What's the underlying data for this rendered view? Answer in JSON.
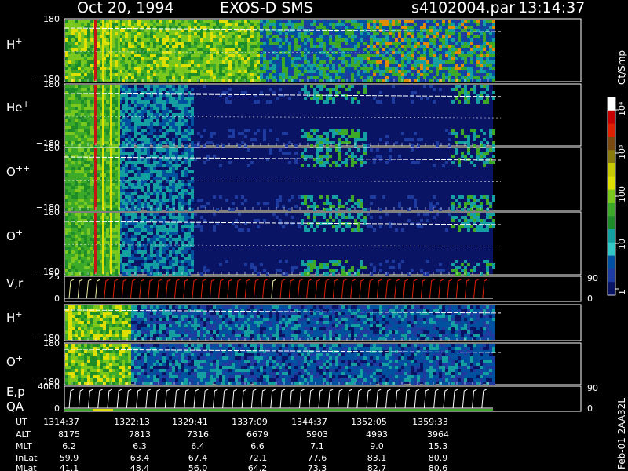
{
  "header": {
    "date": "Oct 20, 1994",
    "mission": "EXOS-D SMS",
    "file": "s4102004.par",
    "time": "13:14:37"
  },
  "colorbar": {
    "unit_label": "Ct/Smp",
    "tick_labels": [
      "10⁴",
      "10³",
      "100",
      "10",
      "1"
    ],
    "colors": [
      "#ffffff",
      "#c80000",
      "#e02000",
      "#7a4a10",
      "#8a7a10",
      "#c8c800",
      "#e0e000",
      "#7ac81e",
      "#3caa28",
      "#1e8c28",
      "#14a0a0",
      "#32c8c8",
      "#0050a0",
      "#1e3ca0",
      "#0a1464"
    ]
  },
  "side_note": "Feb-01 2AA32L",
  "panels": [
    {
      "label": "H+",
      "ymax": "180",
      "ymin": "−180"
    },
    {
      "label": "He+",
      "ymax": "180",
      "ymin": "−180"
    },
    {
      "label": "O++",
      "ymax": "180",
      "ymin": "−180"
    },
    {
      "label": "O+",
      "ymax": "180",
      "ymin": "−180"
    },
    {
      "label": "V,r",
      "ymax": "25",
      "ymin": "0",
      "right_top": "90",
      "right_bottom": "0"
    },
    {
      "label": "H+",
      "ymax": "",
      "ymin": "−180"
    },
    {
      "label": "O+",
      "ymax": "180",
      "ymin": "−180"
    },
    {
      "label": "E,p",
      "ymax": "4000",
      "ymin": "0",
      "right_top": "90",
      "right_bottom": "0",
      "sub": "QA"
    }
  ],
  "orbit_table": {
    "row_labels": [
      "UT",
      "ALT",
      "MLT",
      "InLat",
      "MLat"
    ],
    "columns": [
      {
        "UT": "1314:37",
        "ALT": "8175",
        "MLT": "6.2",
        "InLat": "59.9",
        "MLat": "41.1"
      },
      {
        "UT": "1322:13",
        "ALT": "7813",
        "MLT": "6.3",
        "InLat": "63.4",
        "MLat": "48.4"
      },
      {
        "UT": "1329:41",
        "ALT": "7316",
        "MLT": "6.4",
        "InLat": "67.4",
        "MLat": "56.0"
      },
      {
        "UT": "1337:09",
        "ALT": "6679",
        "MLT": "6.6",
        "InLat": "72.1",
        "MLat": "64.2"
      },
      {
        "UT": "1344:37",
        "ALT": "5903",
        "MLT": "7.1",
        "InLat": "77.6",
        "MLat": "73.3"
      },
      {
        "UT": "1352:05",
        "ALT": "4993",
        "MLT": "9.0",
        "InLat": "83.1",
        "MLat": "82.7"
      },
      {
        "UT": "1359:33",
        "ALT": "3964",
        "MLT": "15.3",
        "InLat": "80.9",
        "MLat": "80.6"
      }
    ]
  },
  "chart_data": {
    "type": "heatmap",
    "title": "Oct 20, 1994   EXOS-D SMS",
    "x_ticks_ut": [
      "1314:37",
      "1322:13",
      "1329:41",
      "1337:09",
      "1344:37",
      "1352:05",
      "1359:33"
    ],
    "colorbar_scale": "log",
    "colorbar_range": [
      1,
      10000
    ],
    "colorbar_unit": "Ct/Smp",
    "grid": false
  }
}
